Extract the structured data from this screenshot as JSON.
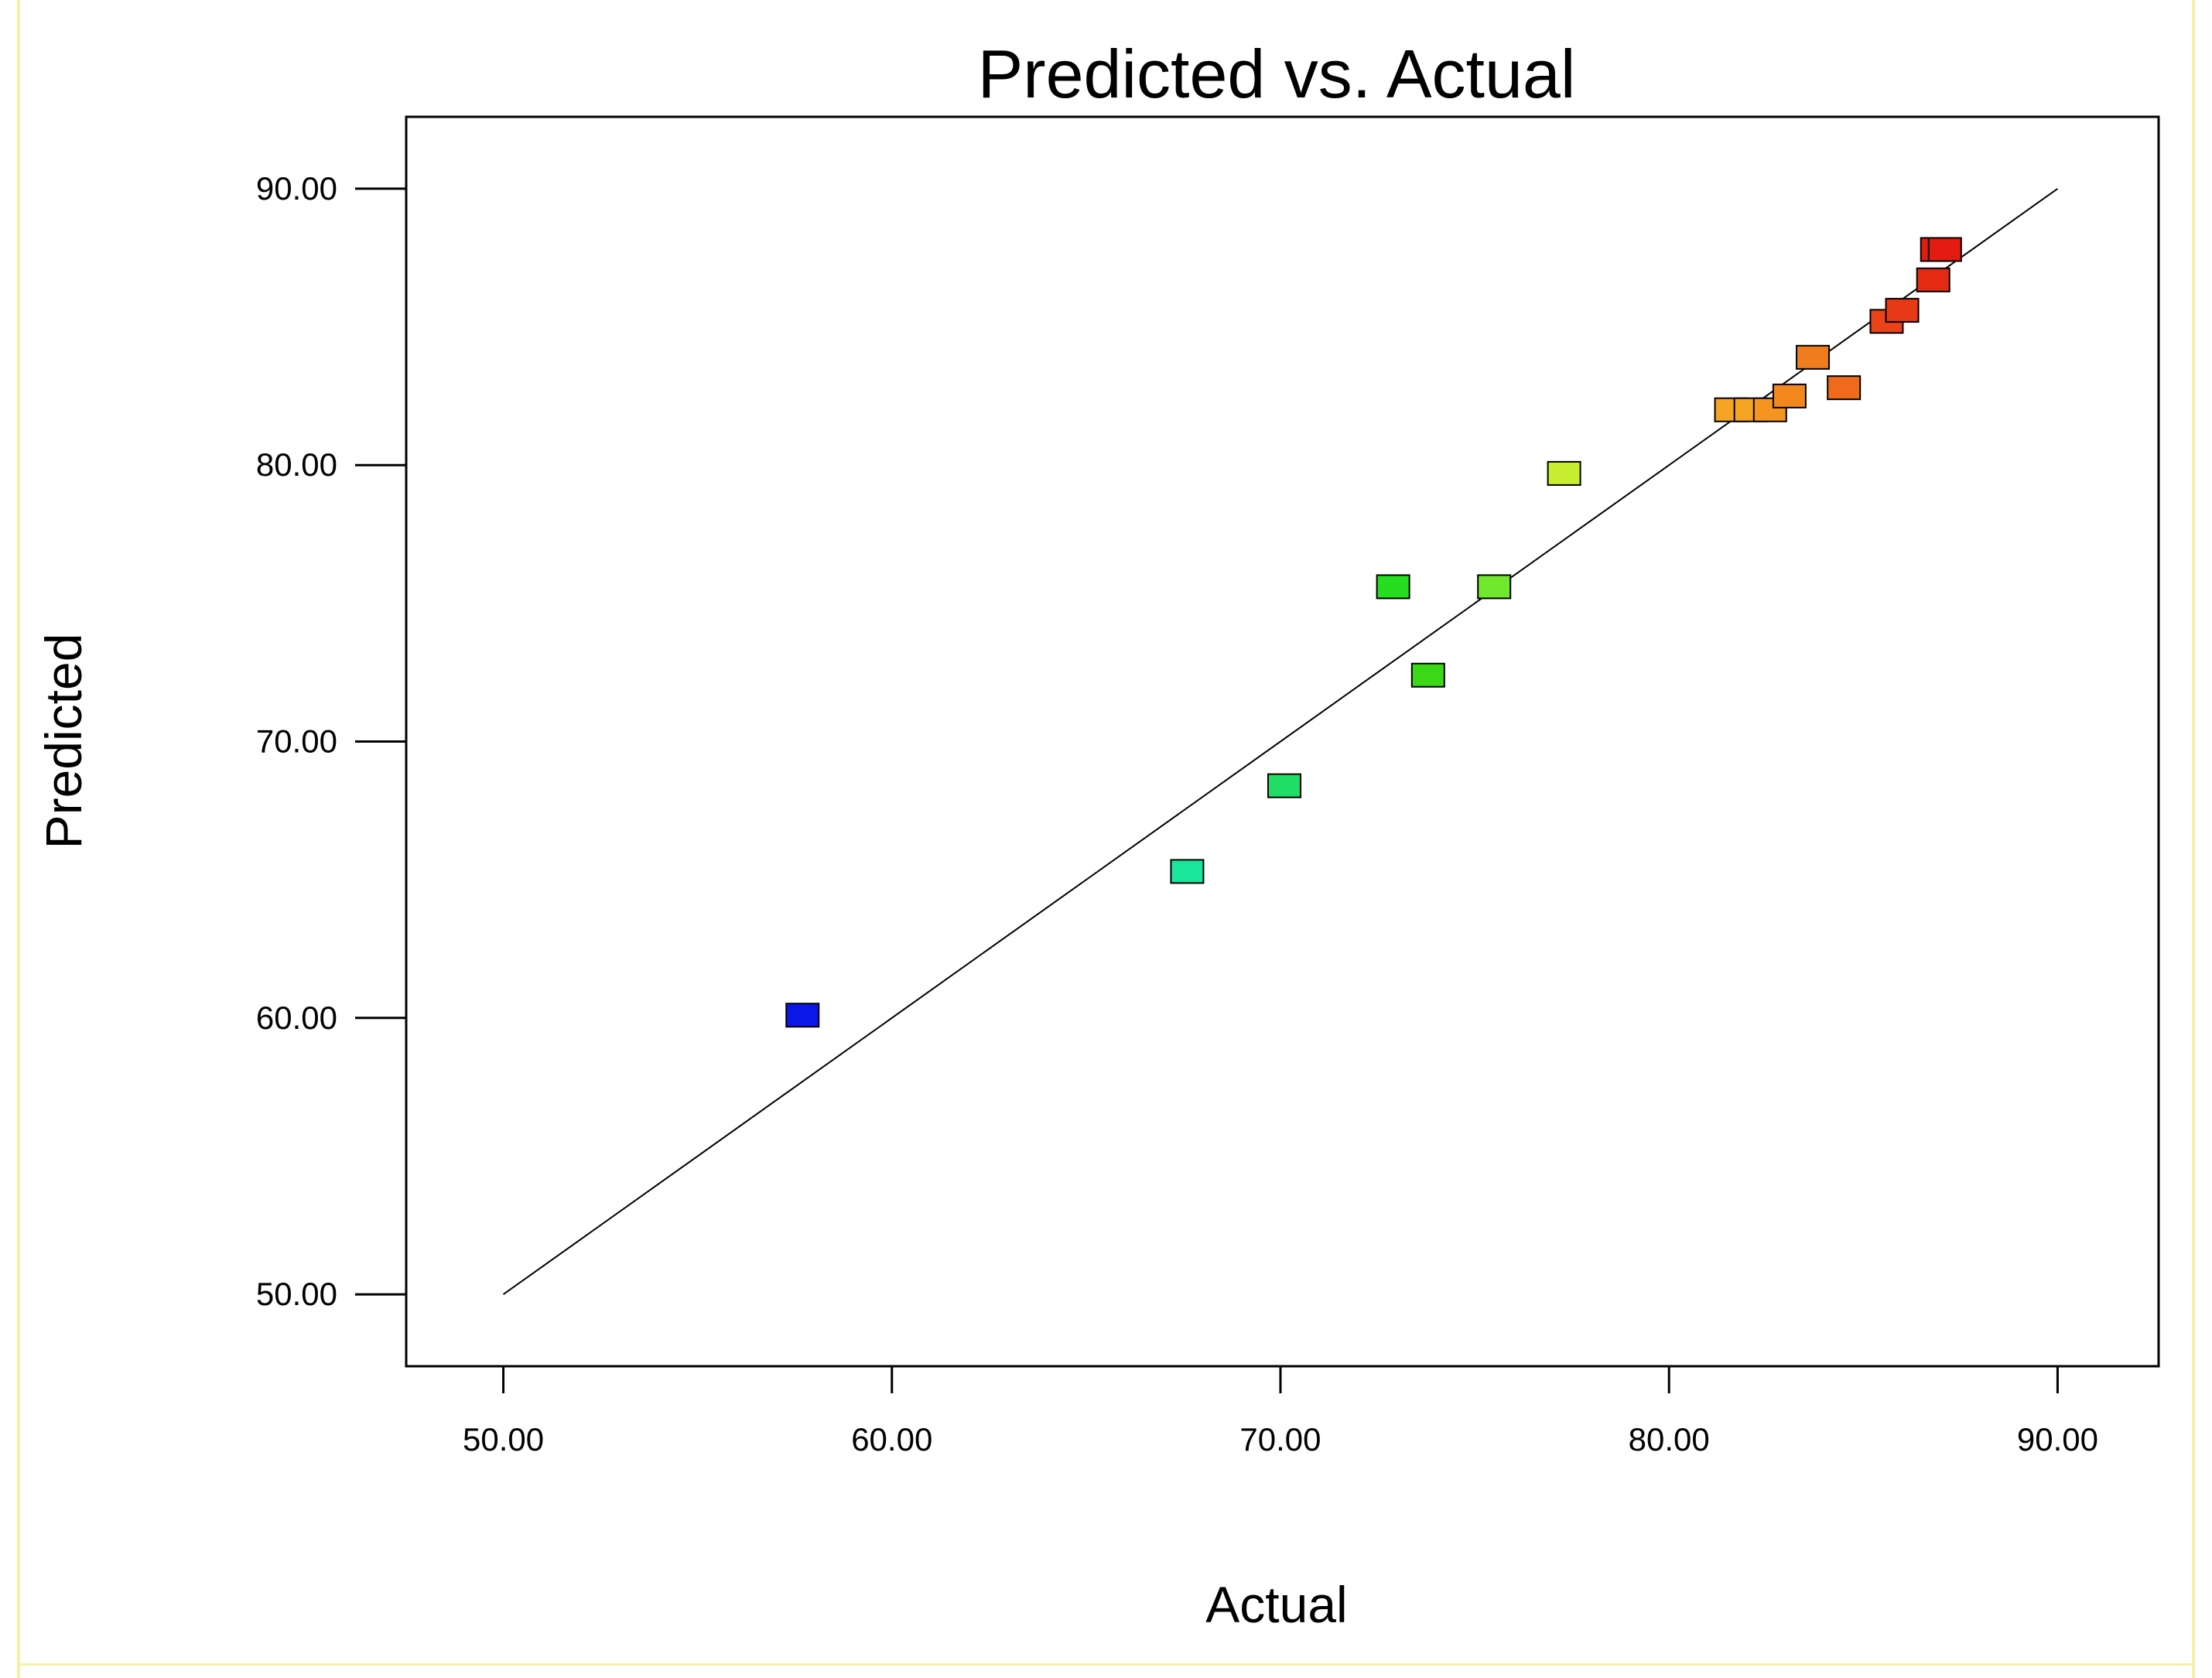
{
  "chart_data": {
    "type": "scatter",
    "title": "Predicted vs. Actual",
    "xlabel": "Actual",
    "ylabel": "Predicted",
    "xlim": [
      47.5,
      92.6
    ],
    "ylim": [
      47.4,
      92.6
    ],
    "xticks": [
      50,
      60,
      70,
      80,
      90
    ],
    "yticks": [
      50,
      60,
      70,
      80,
      90
    ],
    "tick_labels": {
      "x": [
        "50.00",
        "60.00",
        "70.00",
        "80.00",
        "90.00"
      ],
      "y": [
        "50.00",
        "60.00",
        "70.00",
        "80.00",
        "90.00"
      ]
    },
    "reference_line": {
      "x": [
        50,
        90
      ],
      "y": [
        50,
        90
      ]
    },
    "points": [
      {
        "x": 57.7,
        "y": 60.1,
        "color": "#0b17e6"
      },
      {
        "x": 67.6,
        "y": 65.3,
        "color": "#19e69a"
      },
      {
        "x": 70.1,
        "y": 68.4,
        "color": "#20dd66"
      },
      {
        "x": 72.9,
        "y": 75.6,
        "color": "#27dd20"
      },
      {
        "x": 73.8,
        "y": 72.4,
        "color": "#3bd818"
      },
      {
        "x": 75.5,
        "y": 75.6,
        "color": "#70e82c"
      },
      {
        "x": 77.3,
        "y": 79.7,
        "color": "#c6ed2f"
      },
      {
        "x": 81.6,
        "y": 82.0,
        "color": "#f5a423"
      },
      {
        "x": 82.1,
        "y": 82.0,
        "color": "#f5a423"
      },
      {
        "x": 82.6,
        "y": 82.0,
        "color": "#f49522"
      },
      {
        "x": 83.1,
        "y": 82.5,
        "color": "#f2871e"
      },
      {
        "x": 83.7,
        "y": 83.9,
        "color": "#ef7d1d"
      },
      {
        "x": 84.5,
        "y": 82.8,
        "color": "#f06a1c"
      },
      {
        "x": 85.6,
        "y": 85.2,
        "color": "#ea4318"
      },
      {
        "x": 86.0,
        "y": 85.6,
        "color": "#e83917"
      },
      {
        "x": 86.8,
        "y": 86.7,
        "color": "#e52a14"
      },
      {
        "x": 86.9,
        "y": 87.8,
        "color": "#e31b12"
      },
      {
        "x": 87.1,
        "y": 87.8,
        "color": "#e31b12"
      }
    ],
    "grid": false,
    "legend": "none"
  }
}
